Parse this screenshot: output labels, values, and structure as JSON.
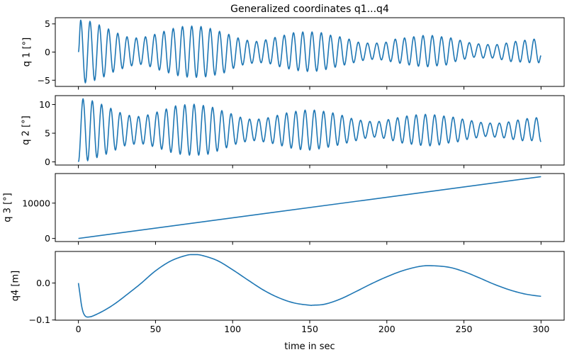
{
  "figure": {
    "title": "Generalized coordinates q1...q4",
    "xlabel": "time in sec",
    "line_color": "#1f77b4"
  },
  "chart_data": [
    {
      "type": "line",
      "ylabel": "q 1 [°]",
      "xlim": [
        -15,
        315
      ],
      "ylim": [
        -6.1,
        6.1
      ],
      "xticks": [
        0,
        50,
        100,
        150,
        200,
        250,
        300
      ],
      "xtick_labels": [],
      "yticks": [
        -5,
        0,
        5
      ],
      "ytick_labels": [
        "−5",
        "0",
        "5"
      ],
      "interpolation": "extrema",
      "x": [
        0,
        1.5,
        4.5,
        7.5,
        10.5,
        13.5,
        16.5,
        19.5,
        22.5,
        25.5,
        28.5,
        31.5,
        34.5,
        37.5,
        40.5,
        43.5,
        46.5,
        49.5,
        52.5,
        55.5,
        58.5,
        61.5,
        64.5,
        67.5,
        70.5,
        73.5,
        76.5,
        79.5,
        82.5,
        85.5,
        88.5,
        91.5,
        94.5,
        97.5,
        100.5,
        103.5,
        106.5,
        109.5,
        112.5,
        115.5,
        118.5,
        121.5,
        124.5,
        127.5,
        130.5,
        133.5,
        136.5,
        139.5,
        142.5,
        145.5,
        148.5,
        151.5,
        154.5,
        157.5,
        160.5,
        163.5,
        166.5,
        169.5,
        172.5,
        175.5,
        178.5,
        181.5,
        184.5,
        187.5,
        190.5,
        193.5,
        196.5,
        199.5,
        202.5,
        205.5,
        208.5,
        211.5,
        214.5,
        217.5,
        220.5,
        223.5,
        226.5,
        229.5,
        232.5,
        235.5,
        238.5,
        241.5,
        244.5,
        247.5,
        250.5,
        253.5,
        256.5,
        259.5,
        262.5,
        265.5,
        268.5,
        271.5,
        274.5,
        277.5,
        280.5,
        283.5,
        286.5,
        289.5,
        292.5,
        295.5,
        298.5,
        300
      ],
      "y": [
        0,
        5.67,
        -5.47,
        5.46,
        -5.04,
        4.83,
        -4.41,
        4.11,
        -3.58,
        3.35,
        -2.95,
        2.72,
        -2.45,
        2.52,
        -2.2,
        2.72,
        -2.6,
        3.15,
        -3.2,
        3.69,
        -3.7,
        4.2,
        -4.2,
        4.54,
        -4.45,
        4.62,
        -4.5,
        4.54,
        -4.4,
        4.2,
        -4.1,
        3.69,
        -3.7,
        3.15,
        -2.9,
        2.52,
        -2.3,
        2.1,
        -2.0,
        1.9,
        -1.9,
        2.18,
        -2.1,
        2.6,
        -2.6,
        3.0,
        -3.0,
        3.44,
        -3.3,
        3.57,
        -3.45,
        3.57,
        -3.4,
        3.44,
        -3.1,
        3.0,
        -2.7,
        2.72,
        -2.3,
        2.3,
        -1.9,
        1.76,
        -1.5,
        1.6,
        -1.3,
        1.6,
        -1.4,
        1.76,
        -1.7,
        2.3,
        -2.0,
        2.52,
        -2.3,
        2.72,
        -2.52,
        2.94,
        -2.61,
        2.94,
        -2.45,
        2.72,
        -2.3,
        2.52,
        -1.69,
        2.1,
        -1.26,
        1.68,
        -0.93,
        1.46,
        -1.06,
        1.34,
        -1.06,
        1.34,
        -1.35,
        1.6,
        -1.69,
        1.9,
        -1.77,
        2.1,
        -1.89,
        2.3,
        -1.9,
        -0.63
      ]
    },
    {
      "type": "line",
      "ylabel": "q 2 [°]",
      "xlim": [
        -15,
        315
      ],
      "ylim": [
        -0.55,
        11.55
      ],
      "xticks": [
        0,
        50,
        100,
        150,
        200,
        250,
        300
      ],
      "xtick_labels": [],
      "yticks": [
        0,
        5,
        10
      ],
      "ytick_labels": [
        "0",
        "5",
        "10"
      ],
      "interpolation": "extrema",
      "x": [
        0,
        3,
        6,
        9,
        12,
        15,
        18,
        21,
        24,
        27,
        30,
        33,
        36,
        39,
        42,
        45,
        48,
        51,
        54,
        57,
        60,
        63,
        66,
        69,
        72,
        75,
        78,
        81,
        84,
        87,
        90,
        93,
        96,
        99,
        102,
        105,
        108,
        111,
        114,
        117,
        120,
        123,
        126,
        129,
        132,
        135,
        138,
        141,
        144,
        147,
        150,
        153,
        156,
        159,
        162,
        165,
        168,
        171,
        174,
        177,
        180,
        183,
        186,
        189,
        192,
        195,
        198,
        201,
        204,
        207,
        210,
        213,
        216,
        219,
        222,
        225,
        228,
        231,
        234,
        237,
        240,
        243,
        246,
        249,
        252,
        255,
        258,
        261,
        264,
        267,
        270,
        273,
        276,
        279,
        282,
        285,
        288,
        291,
        294,
        297,
        300
      ],
      "y": [
        0,
        11.0,
        0.2,
        10.66,
        0.74,
        10.05,
        1.32,
        9.35,
        2.05,
        8.61,
        2.79,
        8.12,
        3.07,
        7.92,
        3.1,
        8.2,
        2.7,
        8.7,
        2.2,
        9.23,
        1.65,
        9.77,
        1.32,
        9.96,
        1.16,
        10.05,
        1.16,
        9.84,
        1.32,
        9.52,
        1.85,
        8.94,
        2.46,
        8.41,
        3.07,
        7.8,
        3.49,
        7.47,
        3.69,
        7.47,
        3.49,
        7.71,
        3.2,
        8.12,
        2.79,
        8.54,
        2.39,
        8.82,
        2.14,
        9.03,
        2.05,
        9.03,
        2.26,
        8.82,
        2.55,
        8.54,
        2.88,
        8.12,
        3.28,
        7.59,
        3.69,
        7.26,
        4.11,
        7.06,
        4.31,
        7.06,
        4.11,
        7.38,
        3.69,
        7.71,
        3.28,
        8.0,
        3.07,
        8.2,
        2.88,
        8.29,
        2.79,
        8.2,
        2.95,
        8.0,
        3.28,
        7.8,
        3.49,
        7.47,
        3.9,
        7.18,
        4.18,
        6.89,
        4.43,
        6.77,
        4.31,
        6.77,
        4.18,
        6.97,
        3.9,
        7.3,
        3.69,
        7.55,
        3.69,
        7.71,
        3.49
      ]
    },
    {
      "type": "line",
      "ylabel": "q 3 [°]",
      "xlim": [
        -15,
        315
      ],
      "ylim": [
        -875,
        18375
      ],
      "xticks": [
        0,
        50,
        100,
        150,
        200,
        250,
        300
      ],
      "xtick_labels": [],
      "yticks": [
        0,
        10000
      ],
      "ytick_labels": [
        "0",
        "10000"
      ],
      "interpolation": "linear",
      "x": [
        0,
        300
      ],
      "y": [
        0,
        17500
      ]
    },
    {
      "type": "line",
      "ylabel": "q4 [m]",
      "xlim": [
        -15,
        315
      ],
      "ylim": [
        -0.1005,
        0.0855
      ],
      "xticks": [
        0,
        50,
        100,
        150,
        200,
        250,
        300
      ],
      "xtick_labels": [
        "0",
        "50",
        "100",
        "150",
        "200",
        "250",
        "300"
      ],
      "yticks": [
        -0.1,
        0.0
      ],
      "ytick_labels": [
        "−0.1",
        "0.0"
      ],
      "interpolation": "smooth",
      "x": [
        0,
        1,
        2,
        3,
        4,
        5,
        6,
        8,
        10,
        15,
        20,
        25,
        30,
        40,
        50,
        60,
        70,
        75,
        80,
        90,
        100,
        110,
        120,
        130,
        140,
        150,
        152,
        160,
        170,
        180,
        190,
        200,
        210,
        220,
        228,
        240,
        250,
        260,
        270,
        280,
        290,
        300
      ],
      "y": [
        0,
        -0.03,
        -0.06,
        -0.078,
        -0.087,
        -0.091,
        -0.092,
        -0.091,
        -0.088,
        -0.078,
        -0.066,
        -0.052,
        -0.036,
        -0.003,
        0.033,
        0.06,
        0.075,
        0.077,
        0.075,
        0.061,
        0.036,
        0.008,
        -0.019,
        -0.04,
        -0.054,
        -0.06,
        -0.06,
        -0.057,
        -0.043,
        -0.023,
        -0.002,
        0.017,
        0.033,
        0.044,
        0.047,
        0.043,
        0.031,
        0.014,
        -0.004,
        -0.019,
        -0.03,
        -0.036
      ]
    }
  ]
}
